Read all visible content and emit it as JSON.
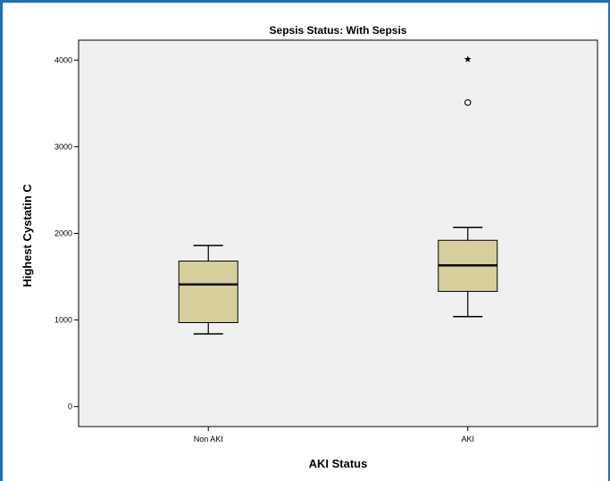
{
  "chart_data": {
    "type": "box",
    "title": "Sepsis Status: With Sepsis",
    "xlabel": "AKI Status",
    "ylabel": "Highest Cystatin C",
    "categories": [
      "Non AKI",
      "AKI"
    ],
    "ylim": [
      -230,
      4230
    ],
    "yticks": [
      0,
      1000,
      2000,
      3000,
      4000
    ],
    "grid": false,
    "colors": {
      "plot_background": "#f0f0f0",
      "box_fill": "#d6cf9b",
      "frame": "#1f6fb2"
    },
    "boxes": [
      {
        "category": "Non AKI",
        "min": 840,
        "q1": 970,
        "median": 1410,
        "q3": 1680,
        "max": 1860,
        "outliers": [],
        "extremes": []
      },
      {
        "category": "AKI",
        "min": 1040,
        "q1": 1330,
        "median": 1630,
        "q3": 1920,
        "max": 2070,
        "outliers": [
          3510
        ],
        "extremes": [
          4010
        ]
      }
    ]
  }
}
